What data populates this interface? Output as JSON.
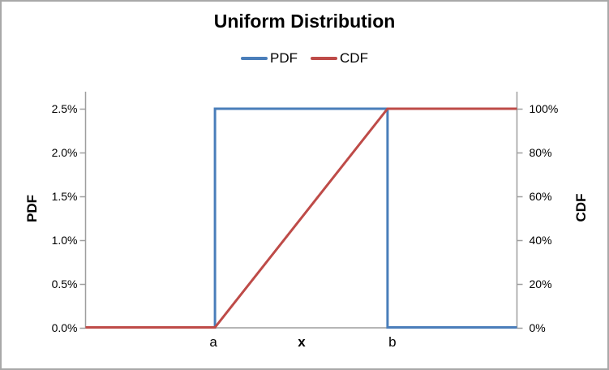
{
  "chart_data": {
    "type": "line",
    "title": "Uniform Distribution",
    "legend": [
      {
        "label": "PDF",
        "color": "#4A7EBA"
      },
      {
        "label": "CDF",
        "color": "#BE4B48"
      }
    ],
    "legend_position": "top",
    "gridlines": false,
    "plot_background": "#FFFFFF",
    "axis_color": "#9E9E9E",
    "x_axis": {
      "title": "x",
      "min": 0,
      "max": 1,
      "category_labels": [
        {
          "text": "a",
          "x": 0.3
        },
        {
          "text": "b",
          "x": 0.7
        }
      ]
    },
    "left_axis": {
      "title": "PDF",
      "min": 0,
      "max": 2.5,
      "ticks": [
        {
          "value": 0.0,
          "label": "0.0%"
        },
        {
          "value": 0.5,
          "label": "0.5%"
        },
        {
          "value": 1.0,
          "label": "1.0%"
        },
        {
          "value": 1.5,
          "label": "1.5%"
        },
        {
          "value": 2.0,
          "label": "2.0%"
        },
        {
          "value": 2.5,
          "label": "2.5%"
        }
      ]
    },
    "right_axis": {
      "title": "CDF",
      "min": 0,
      "max": 100,
      "ticks": [
        {
          "value": 0,
          "label": "0%"
        },
        {
          "value": 20,
          "label": "20%"
        },
        {
          "value": 40,
          "label": "40%"
        },
        {
          "value": 60,
          "label": "60%"
        },
        {
          "value": 80,
          "label": "80%"
        },
        {
          "value": 100,
          "label": "100%"
        }
      ]
    },
    "series": [
      {
        "name": "PDF",
        "axis": "left",
        "color": "#4A7EBA",
        "points": [
          [
            0,
            0
          ],
          [
            0.3,
            0
          ],
          [
            0.3,
            2.5
          ],
          [
            0.7,
            2.5
          ],
          [
            0.7,
            0
          ],
          [
            1,
            0
          ]
        ]
      },
      {
        "name": "CDF",
        "axis": "right",
        "color": "#BE4B48",
        "points": [
          [
            0,
            0
          ],
          [
            0.3,
            0
          ],
          [
            0.7,
            100
          ],
          [
            1,
            100
          ]
        ]
      }
    ]
  }
}
